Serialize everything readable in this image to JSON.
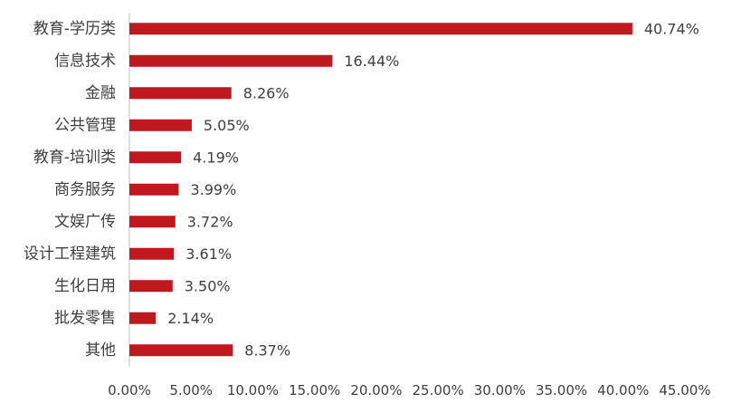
{
  "chart_data": {
    "type": "bar",
    "orientation": "horizontal",
    "categories": [
      "教育-学历类",
      "信息技术",
      "金融",
      "公共管理",
      "教育-培训类",
      "商务服务",
      "文娱广传",
      "设计工程建筑",
      "生化日用",
      "批发零售",
      "其他"
    ],
    "values": [
      40.74,
      16.44,
      8.26,
      5.05,
      4.19,
      3.99,
      3.72,
      3.61,
      3.5,
      2.14,
      8.37
    ],
    "value_labels": [
      "40.74%",
      "16.44%",
      "8.26%",
      "5.05%",
      "4.19%",
      "3.99%",
      "3.72%",
      "3.61%",
      "3.50%",
      "2.14%",
      "8.37%"
    ],
    "x_ticks": [
      0,
      5,
      10,
      15,
      20,
      25,
      30,
      35,
      40,
      45
    ],
    "x_tick_labels": [
      "0.00%",
      "5.00%",
      "10.00%",
      "15.00%",
      "20.00%",
      "25.00%",
      "30.00%",
      "35.00%",
      "40.00%",
      "45.00%"
    ],
    "xlim": [
      0,
      45
    ],
    "title": "",
    "xlabel": "",
    "ylabel": "",
    "grid": false,
    "legend": "none",
    "bar_color": "#c0181f",
    "axis_color": "#bfbfbf"
  }
}
